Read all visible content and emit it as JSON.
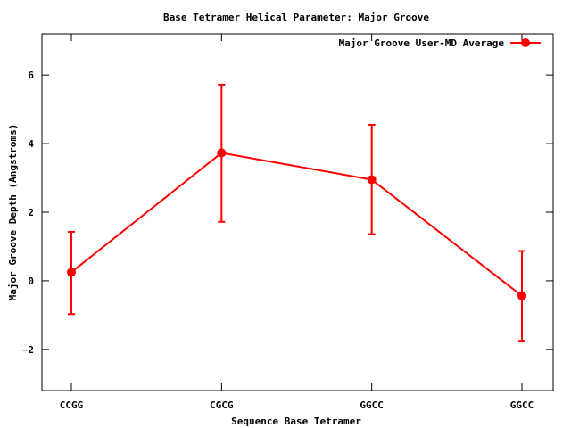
{
  "chart_data": {
    "type": "line",
    "title": "Base Tetramer Helical Parameter: Major Groove",
    "xlabel": "Sequence Base Tetramer",
    "ylabel": "Major Groove Depth (Angstroms)",
    "categories": [
      "CCGG",
      "CGCG",
      "GGCC",
      "GGCC"
    ],
    "ylim": [
      -3.2,
      7.2
    ],
    "yticks": [
      -2,
      0,
      2,
      4,
      6
    ],
    "grid": false,
    "legend": "top-right",
    "series": [
      {
        "name": "Major Groove User-MD Average",
        "color": "#ff0000",
        "values": [
          0.25,
          3.73,
          2.95,
          -0.44
        ],
        "err_low": [
          -0.97,
          1.72,
          1.36,
          -1.75
        ],
        "err_high": [
          1.43,
          5.72,
          4.55,
          0.87
        ]
      }
    ]
  }
}
